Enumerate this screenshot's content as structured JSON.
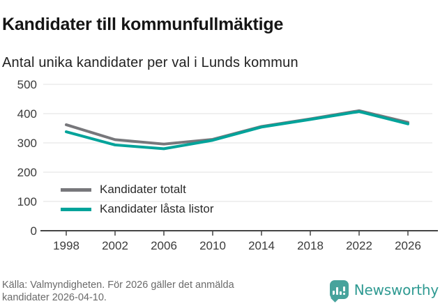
{
  "header": {
    "title": "Kandidater till kommunfullmäktige",
    "subtitle": "Antal unika kandidater per val i Lunds kommun"
  },
  "chart_data": {
    "type": "line",
    "x": [
      1998,
      2002,
      2006,
      2010,
      2014,
      2018,
      2022,
      2026
    ],
    "series": [
      {
        "name": "Kandidater totalt",
        "color": "#77777b",
        "values": [
          362,
          311,
          296,
          312,
          356,
          382,
          410,
          370
        ]
      },
      {
        "name": "Kandidater låsta listor",
        "color": "#00a39a",
        "values": [
          338,
          293,
          280,
          309,
          354,
          380,
          407,
          365
        ]
      }
    ],
    "ylim": [
      0,
      500
    ],
    "yticks": [
      0,
      100,
      200,
      300,
      400,
      500
    ],
    "grid": true,
    "legend_position": "inside top-left",
    "gridline_color": "#e2e2e2",
    "axis_color": "#444444",
    "tick_label_color": "#3b3b3b"
  },
  "footer": {
    "source_line1": "Källa: Valmyndigheten. För 2026 gäller det anmälda",
    "source_line2": "kandidater 2026-04-10.",
    "brand": {
      "name": "Newsworthy",
      "color": "#2f9a92",
      "icon_color": "#47a39c"
    }
  }
}
